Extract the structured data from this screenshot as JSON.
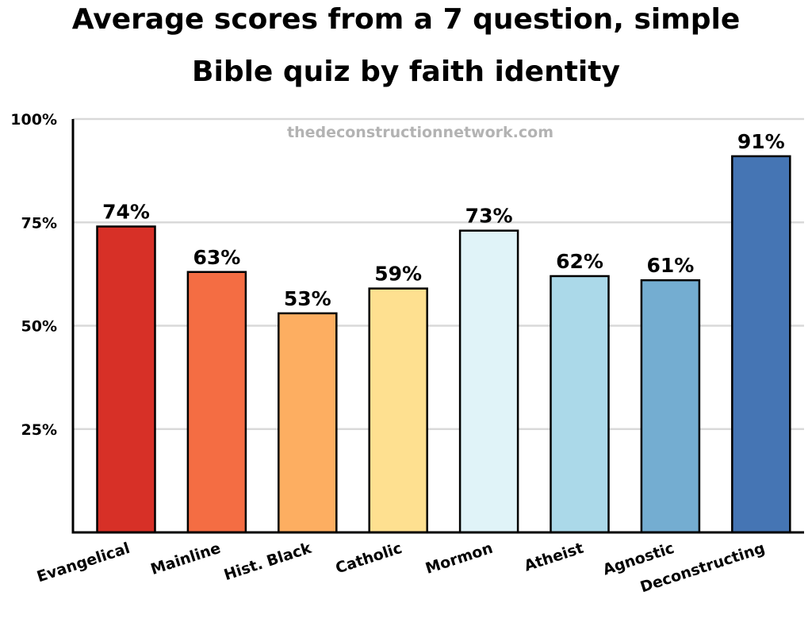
{
  "chart_data": {
    "type": "bar",
    "title": "Average scores from a 7 question, simple Bible quiz by faith identity",
    "title_lines": [
      "Average scores from a 7 question, simple",
      "Bible quiz by faith identity"
    ],
    "watermark": "thedeconstructionnetwork.com",
    "categories": [
      "Evangelical",
      "Mainline",
      "Hist. Black",
      "Catholic",
      "Mormon",
      "Atheist",
      "Agnostic",
      "Deconstructing"
    ],
    "values": [
      74,
      63,
      53,
      59,
      73,
      62,
      61,
      91
    ],
    "data_labels": [
      "74%",
      "63%",
      "53%",
      "59%",
      "73%",
      "62%",
      "61%",
      "91%"
    ],
    "colors": [
      "#d73027",
      "#f46d43",
      "#fdae61",
      "#fee090",
      "#e0f3f8",
      "#abd9e9",
      "#74add1",
      "#4575b4"
    ],
    "y_ticks": [
      25,
      50,
      75,
      100
    ],
    "y_tick_labels": [
      "25%",
      "50%",
      "75%",
      "100%"
    ],
    "ylim": [
      0,
      100
    ],
    "xlabel": "",
    "ylabel": "",
    "grid": true,
    "legend": "none"
  }
}
